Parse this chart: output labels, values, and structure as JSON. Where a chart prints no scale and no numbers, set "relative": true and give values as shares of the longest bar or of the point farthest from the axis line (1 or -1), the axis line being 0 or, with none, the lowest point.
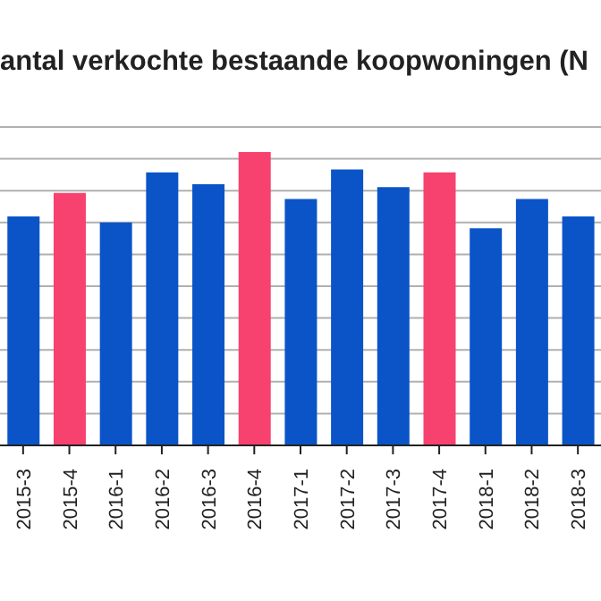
{
  "chart_data": {
    "type": "bar",
    "title": "antal verkochte bestaande koopwoningen (N",
    "categories": [
      "2015-3",
      "2015-4",
      "2016-1",
      "2016-2",
      "2016-3",
      "2016-4",
      "2017-1",
      "2017-2",
      "2017-3",
      "2017-4",
      "2018-1",
      "2018-2",
      "2018-3"
    ],
    "values": [
      0.78,
      0.86,
      0.76,
      0.93,
      0.89,
      1,
      0.84,
      0.94,
      0.88,
      0.93,
      0.74,
      0.84,
      0.78
    ],
    "colors": [
      "#0a54c8",
      "#f7416e",
      "#0a54c8",
      "#0a54c8",
      "#0a54c8",
      "#f7416e",
      "#0a54c8",
      "#0a54c8",
      "#0a54c8",
      "#f7416e",
      "#0a54c8",
      "#0a54c8",
      "#0a54c8"
    ],
    "relative": true,
    "grid": "y"
  }
}
